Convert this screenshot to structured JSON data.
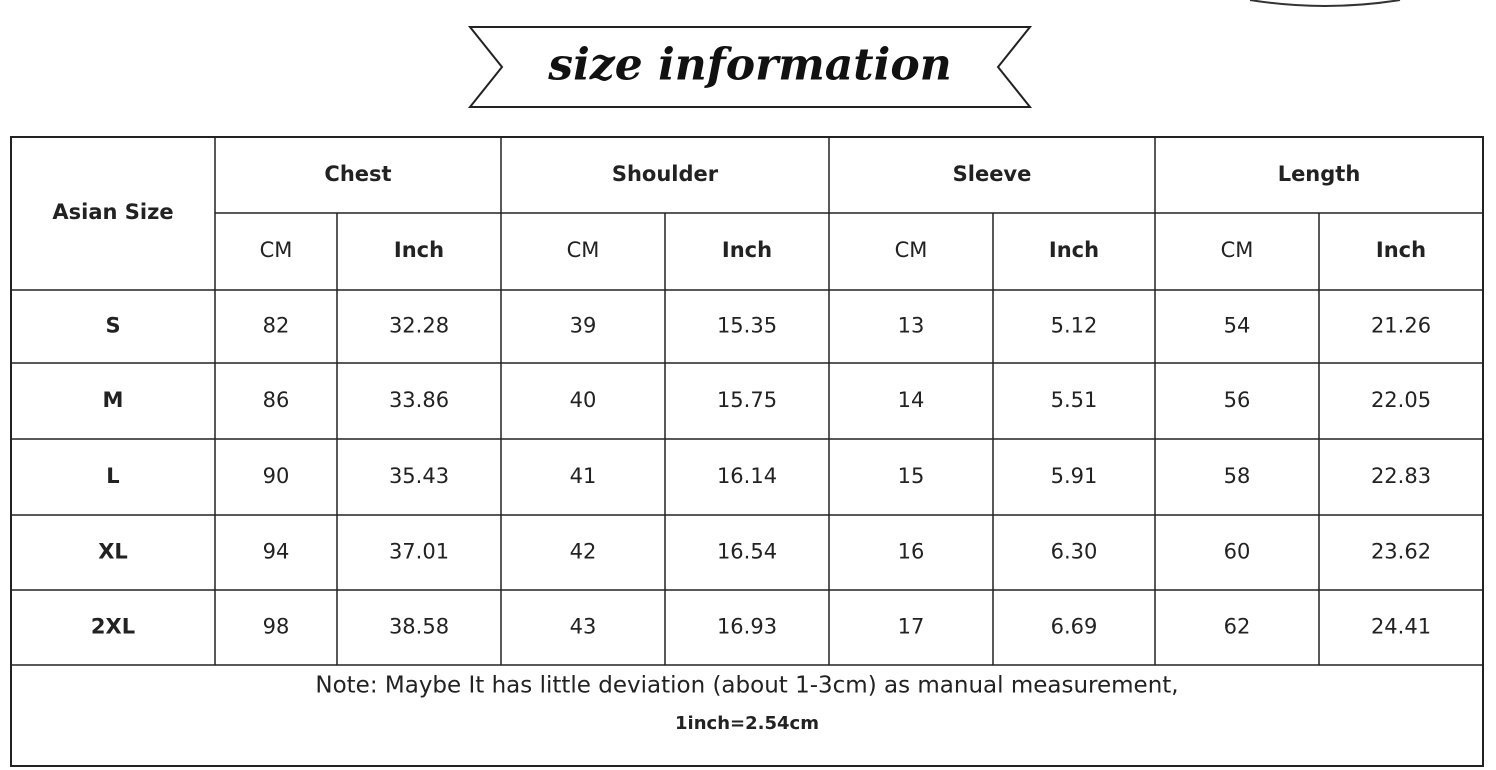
{
  "header": {
    "title": "size information"
  },
  "table": {
    "size_header": "Asian Size",
    "groups": [
      "Chest",
      "Shoulder",
      "Sleeve",
      "Length"
    ],
    "units": [
      "CM",
      "Inch",
      "CM",
      "Inch",
      "CM",
      "Inch",
      "CM",
      "Inch"
    ],
    "rows": [
      [
        "S",
        "82",
        "32.28",
        "39",
        "15.35",
        "13",
        "5.12",
        "54",
        "21.26"
      ],
      [
        "M",
        "86",
        "33.86",
        "40",
        "15.75",
        "14",
        "5.51",
        "56",
        "22.05"
      ],
      [
        "L",
        "90",
        "35.43",
        "41",
        "16.14",
        "15",
        "5.91",
        "58",
        "22.83"
      ],
      [
        "XL",
        "94",
        "37.01",
        "42",
        "16.54",
        "16",
        "6.30",
        "60",
        "23.62"
      ],
      [
        "2XL",
        "98",
        "38.58",
        "43",
        "16.93",
        "17",
        "6.69",
        "62",
        "24.41"
      ]
    ],
    "note": "Note: Maybe It has little deviation (about 1-3cm) as manual measurement,",
    "conversion": "1inch=2.54cm"
  }
}
